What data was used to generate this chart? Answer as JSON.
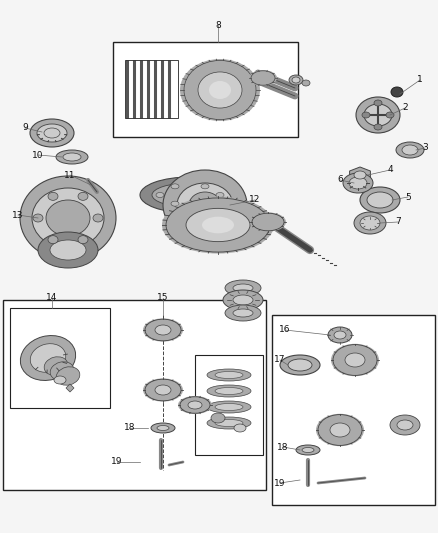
{
  "background_color": "#f5f5f5",
  "figsize": [
    4.38,
    5.33
  ],
  "dpi": 100,
  "line_color": "#222222",
  "gray1": "#888888",
  "gray2": "#aaaaaa",
  "gray3": "#cccccc",
  "gray_dark": "#444444",
  "label_fontsize": 6.5,
  "label_color": "#111111",
  "leader_color": "#666666"
}
